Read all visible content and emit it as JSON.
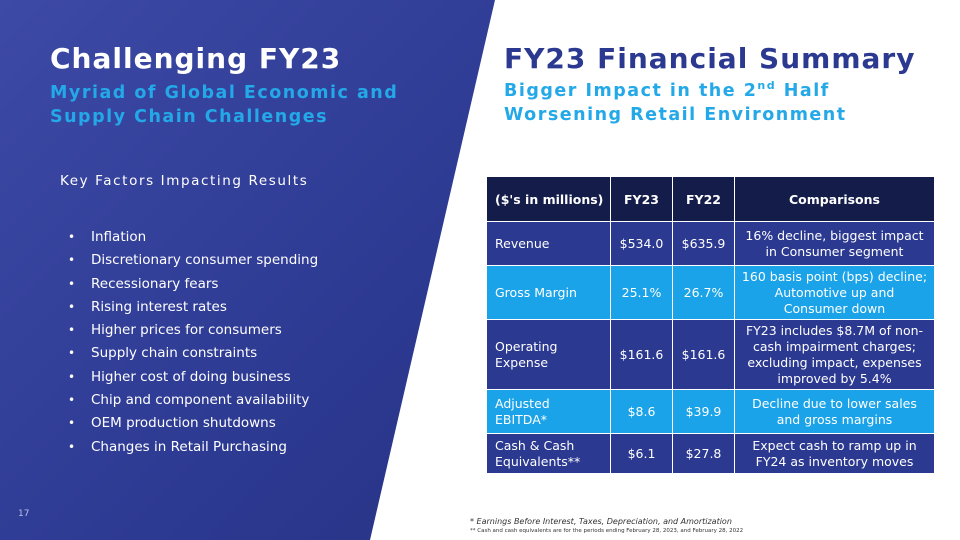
{
  "left": {
    "title": "Challenging FY23",
    "subtitle_line1": "Myriad of Global Economic and",
    "subtitle_line2": "Supply Chain Challenges",
    "factors_heading": "Key Factors Impacting Results",
    "factors": [
      "Inflation",
      "Discretionary consumer spending",
      "Recessionary fears",
      "Rising interest rates",
      "Higher prices for consumers",
      "Supply chain constraints",
      "Higher cost of doing business",
      "Chip and component availability",
      "OEM production shutdowns",
      "Changes in Retail Purchasing"
    ],
    "page_number": "17"
  },
  "right": {
    "title": "FY23 Financial Summary",
    "subtitle_line1_pre": "Bigger Impact in the 2",
    "subtitle_line1_sup": "nd",
    "subtitle_line1_post": " Half",
    "subtitle_line2": "Worsening Retail Environment"
  },
  "table": {
    "headers": [
      "($'s in millions)",
      "FY23",
      "FY22",
      "Comparisons"
    ],
    "rows": [
      {
        "metric": "Revenue",
        "fy23": "$534.0",
        "fy22": "$635.9",
        "comparison": "16% decline, biggest impact in Consumer segment",
        "shade": "dark"
      },
      {
        "metric": "Gross Margin",
        "fy23": "25.1%",
        "fy22": "26.7%",
        "comparison": "160 basis point (bps) decline; Automotive up and Consumer down",
        "shade": "light"
      },
      {
        "metric": "Operating Expense",
        "fy23": "$161.6",
        "fy22": "$161.6",
        "comparison": "FY23 includes $8.7M of non-cash impairment charges; excluding impact, expenses improved by 5.4%",
        "shade": "dark"
      },
      {
        "metric": "Adjusted EBITDA*",
        "fy23": "$8.6",
        "fy22": "$39.9",
        "comparison": "Decline due to lower sales and gross margins",
        "shade": "light"
      },
      {
        "metric": "Cash & Cash Equivalents**",
        "fy23": "$6.1",
        "fy22": "$27.8",
        "comparison": "Expect cash to ramp up in FY24 as inventory moves",
        "shade": "dark"
      }
    ]
  },
  "footnotes": {
    "note1": "*  Earnings Before Interest, Taxes, Depreciation, and Amortization",
    "note2": "** Cash and cash equivalents are for the periods ending February 28, 2023, and February 28, 2022"
  },
  "colors": {
    "navy": "#2b3990",
    "header_dark": "#141c4a",
    "accent_blue": "#1aa3e8",
    "subtitle_blue": "#23a8e8"
  }
}
